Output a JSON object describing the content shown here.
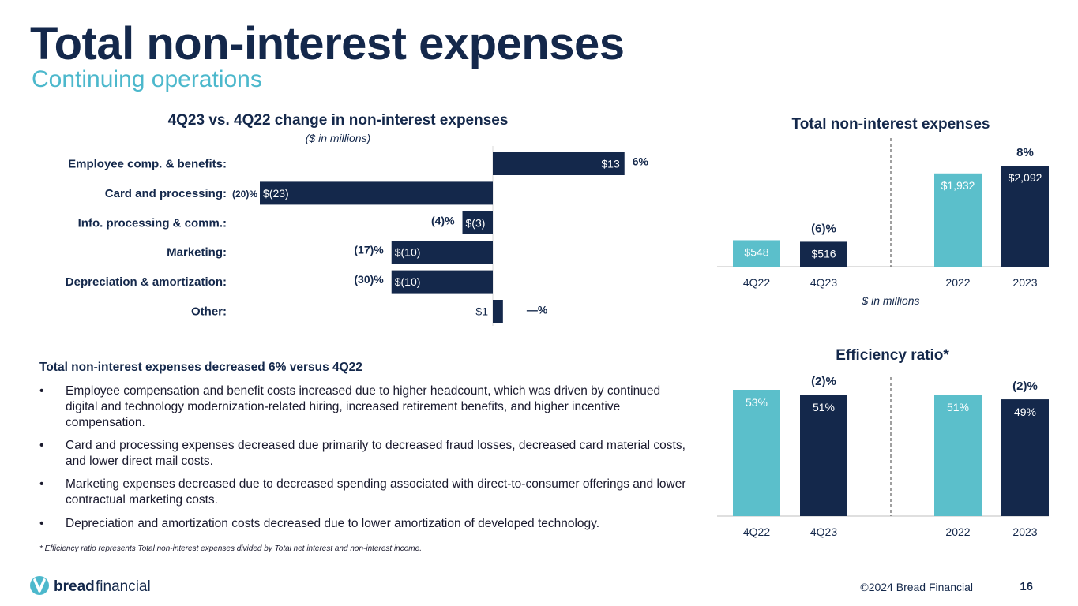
{
  "header": {
    "title": "Total non-interest expenses",
    "subtitle": "Continuing operations"
  },
  "colors": {
    "navy": "#14284b",
    "teal": "#5bbfcb",
    "subtitle_teal": "#4cb8cc"
  },
  "change_chart": {
    "title": "4Q23 vs. 4Q22 change in non-interest expenses",
    "subtitle": "($ in millions)"
  },
  "expense_chart": {
    "title": "Total non-interest expenses",
    "unit_note": "$ in millions"
  },
  "efficiency_chart": {
    "title": "Efficiency ratio*"
  },
  "chart_data": [
    {
      "type": "bar",
      "orientation": "horizontal",
      "title": "4Q23 vs. 4Q22 change in non-interest expenses",
      "subtitle": "($ in millions)",
      "categories": [
        "Employee comp. & benefits:",
        "Card and processing:",
        "Info. processing & comm.:",
        "Marketing:",
        "Depreciation & amortization:",
        "Other:"
      ],
      "values": [
        13,
        -23,
        -3,
        -10,
        -10,
        1
      ],
      "value_labels": [
        "$13",
        "$(23)",
        "$(3)",
        "$(10)",
        "$(10)",
        "$1"
      ],
      "pct_labels": [
        "6%",
        "(20)%",
        "(4)%",
        "(17)%",
        "(30)%",
        "—%"
      ]
    },
    {
      "type": "bar",
      "title": "Total non-interest expenses",
      "unit": "$ in millions",
      "categories": [
        "4Q22",
        "4Q23",
        "2022",
        "2023"
      ],
      "values": [
        548,
        516,
        1932,
        2092
      ],
      "value_labels": [
        "$548",
        "$516",
        "$1,932",
        "$2,092"
      ],
      "colors": [
        "#5bbfcb",
        "#14284b",
        "#5bbfcb",
        "#14284b"
      ],
      "change_labels": [
        {
          "text": "(6)%",
          "over": 1
        },
        {
          "text": "8%",
          "over": 3
        }
      ]
    },
    {
      "type": "bar",
      "title": "Efficiency ratio*",
      "categories": [
        "4Q22",
        "4Q23",
        "2022",
        "2023"
      ],
      "values": [
        53,
        51,
        51,
        49
      ],
      "value_labels": [
        "53%",
        "51%",
        "51%",
        "49%"
      ],
      "colors": [
        "#5bbfcb",
        "#14284b",
        "#5bbfcb",
        "#14284b"
      ],
      "change_labels": [
        {
          "text": "(2)%",
          "over": 1
        },
        {
          "text": "(2)%",
          "over": 3
        }
      ]
    }
  ],
  "commentary": {
    "summary": "Total non-interest expenses decreased 6% versus 4Q22",
    "bullet_symbol": "•",
    "bullets": [
      "Employee compensation and benefit costs increased due to higher headcount, which was driven by continued digital and technology modernization-related hiring, increased retirement benefits, and higher incentive compensation.",
      "Card and processing expenses decreased due primarily to decreased fraud losses, decreased card material costs, and lower direct mail costs.",
      "Marketing expenses decreased due to decreased spending associated with direct-to-consumer offerings and lower contractual marketing costs.",
      "Depreciation and amortization costs decreased due to lower amortization of developed technology."
    ]
  },
  "footnote": "* Efficiency ratio represents Total non-interest expenses divided by Total net interest and non-interest income.",
  "footer": {
    "logo_bold": "bread",
    "logo_light": "financial",
    "copyright": "©2024 Bread Financial",
    "page_number": "16"
  }
}
